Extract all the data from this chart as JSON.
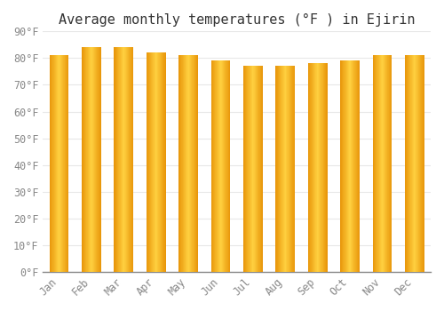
{
  "title": "Average monthly temperatures (°F ) in Ejirin",
  "months": [
    "Jan",
    "Feb",
    "Mar",
    "Apr",
    "May",
    "Jun",
    "Jul",
    "Aug",
    "Sep",
    "Oct",
    "Nov",
    "Dec"
  ],
  "values": [
    81,
    84,
    84,
    82,
    81,
    79,
    77,
    77,
    78,
    79,
    81,
    81
  ],
  "ylim": [
    0,
    90
  ],
  "yticks": [
    0,
    10,
    20,
    30,
    40,
    50,
    60,
    70,
    80,
    90
  ],
  "ytick_labels": [
    "0°F",
    "10°F",
    "20°F",
    "30°F",
    "40°F",
    "50°F",
    "60°F",
    "70°F",
    "80°F",
    "90°F"
  ],
  "bar_color_left": "#E8960A",
  "bar_color_center": "#FFD040",
  "bar_color_right": "#E8960A",
  "background_color": "#FFFFFF",
  "grid_color": "#E8E8E8",
  "title_fontsize": 11,
  "tick_fontsize": 8.5,
  "font_family": "monospace",
  "bar_width": 0.6,
  "n_segments": 40
}
